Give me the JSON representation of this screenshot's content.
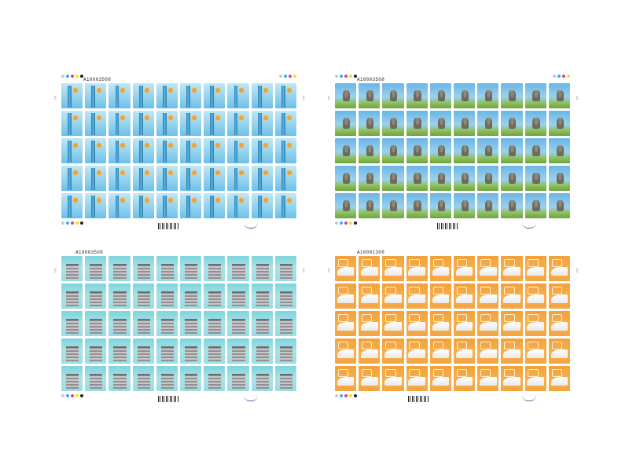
{
  "colors": {
    "tower": "#6cc0e8",
    "buddha": "#69b6e6",
    "building": "#7fd4dd",
    "train": "#f2a13b",
    "registration_dots": [
      "#c8c8c8",
      "#2bb3e8",
      "#e63a96",
      "#f6e400",
      "#222222"
    ]
  },
  "sheets": [
    {
      "id": "sheet-tower",
      "theme": "tower",
      "serial": "A10003508",
      "rows": 5,
      "cols": 10
    },
    {
      "id": "sheet-buddha",
      "theme": "buddha",
      "serial": "A10003508",
      "rows": 5,
      "cols": 10
    },
    {
      "id": "sheet-building",
      "theme": "building",
      "serial": "A10003508",
      "rows": 5,
      "cols": 10
    },
    {
      "id": "sheet-train",
      "theme": "train",
      "serial": "A10001308",
      "rows": 5,
      "cols": 10
    }
  ]
}
